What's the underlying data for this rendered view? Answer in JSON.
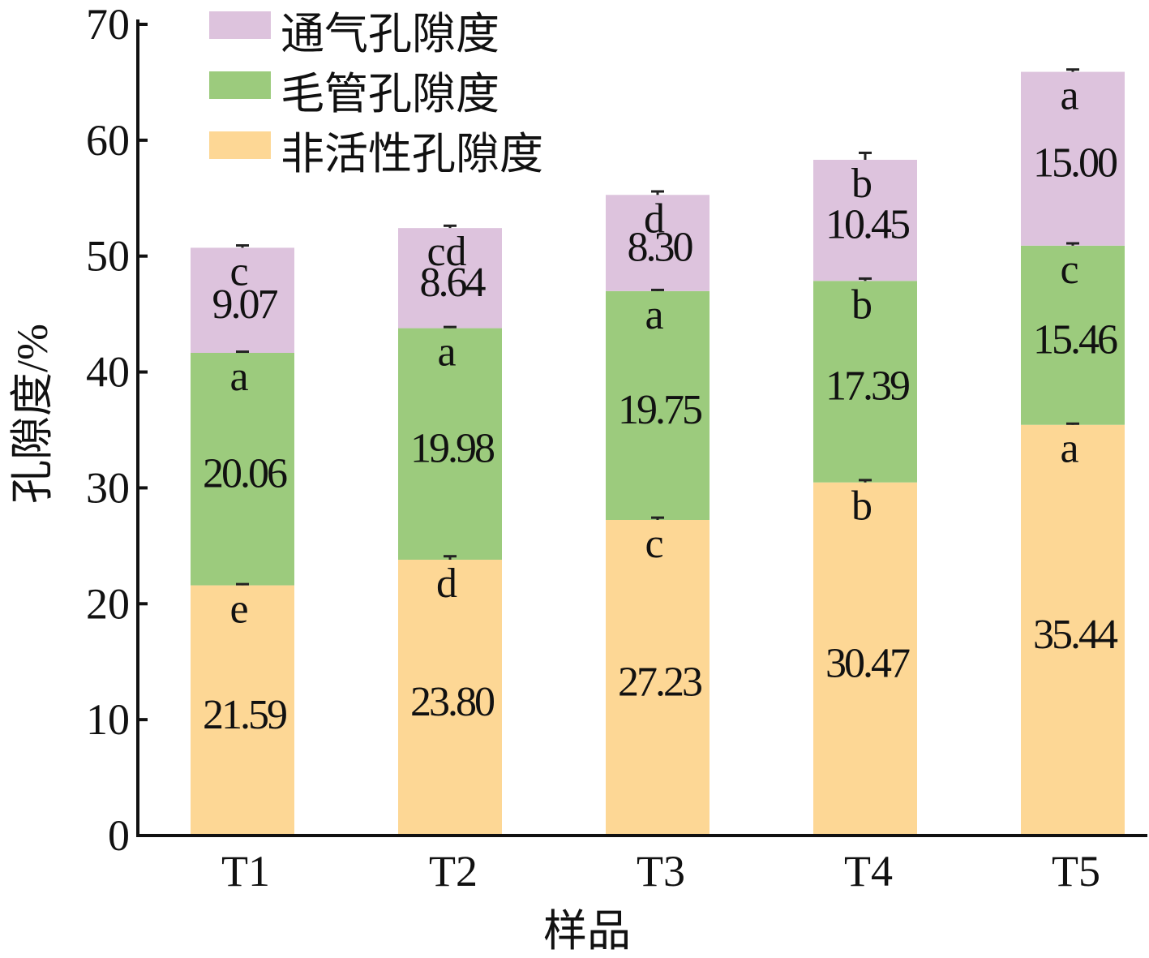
{
  "chart_data": {
    "type": "bar",
    "stacked": true,
    "categories": [
      "T1",
      "T2",
      "T3",
      "T4",
      "T5"
    ],
    "xlabel": "样品",
    "ylabel": "孔隙度/%",
    "ylim": [
      0,
      70
    ],
    "yticks": [
      0,
      10,
      20,
      30,
      40,
      50,
      60,
      70
    ],
    "grid": false,
    "legend_position": "top-left",
    "series": [
      {
        "name": "非活性孔隙度",
        "color": "#fdd795",
        "values": [
          21.59,
          23.8,
          27.23,
          30.47,
          35.44
        ],
        "labels": [
          "21.59",
          "23.80",
          "27.23",
          "30.47",
          "35.44"
        ],
        "letters": [
          "e",
          "d",
          "c",
          "b",
          "a"
        ],
        "errors": [
          0.1,
          0.3,
          0.2,
          0.2,
          0.1
        ]
      },
      {
        "name": "毛管孔隙度",
        "color": "#9ccb7d",
        "values": [
          20.06,
          19.98,
          19.75,
          17.39,
          15.46
        ],
        "labels": [
          "20.06",
          "19.98",
          "19.75",
          "17.39",
          "15.46"
        ],
        "letters": [
          "a",
          "a",
          "a",
          "b",
          "c"
        ],
        "errors": [
          0.1,
          0.1,
          0.1,
          0.2,
          0.2
        ]
      },
      {
        "name": "通气孔隙度",
        "color": "#ddc3dd",
        "values": [
          9.07,
          8.64,
          8.3,
          10.45,
          15.0
        ],
        "labels": [
          "9.07",
          "8.64",
          "8.30",
          "10.45",
          "15.00"
        ],
        "letters": [
          "c",
          "cd",
          "d",
          "b",
          "a"
        ],
        "errors": [
          0.2,
          0.2,
          0.3,
          0.6,
          0.2
        ]
      }
    ],
    "legend_order": [
      2,
      1,
      0
    ]
  }
}
